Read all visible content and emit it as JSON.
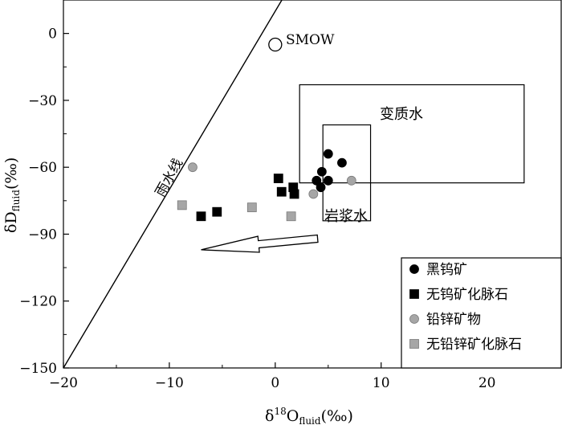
{
  "chart_data": {
    "type": "scatter",
    "xlabel": {
      "base": "δ",
      "sup": "18",
      "main": "O",
      "sub": "fluid",
      "unit": "(‰)"
    },
    "ylabel": {
      "main": "δD",
      "sub": "fluid",
      "unit": "(‰)"
    },
    "xlim": [
      -20,
      27
    ],
    "ylim": [
      -150,
      15
    ],
    "xticks": [
      -20,
      -10,
      0,
      10,
      20
    ],
    "yticks": [
      0,
      -30,
      -60,
      -90,
      -120,
      -150
    ],
    "xtick_labels": [
      "−20",
      "−10",
      "0",
      "10",
      "20"
    ],
    "ytick_labels": [
      "0",
      "−30",
      "−60",
      "−90",
      "−120",
      "−150"
    ],
    "meteoric_line": {
      "label": "雨水线",
      "slope": 8,
      "intercept": 10
    },
    "smow": {
      "label": "SMOW",
      "x": 0,
      "y": -5
    },
    "metamorphic_box": {
      "label": "变质水",
      "x": [
        2.3,
        23.5
      ],
      "y": [
        -23,
        -67
      ]
    },
    "magmatic_box": {
      "label": "岩浆水",
      "x": [
        4.5,
        9
      ],
      "y": [
        -41,
        -84
      ]
    },
    "arrow": {
      "from": [
        4,
        -92
      ],
      "to": [
        -7,
        -97
      ]
    },
    "series": [
      {
        "name": "黑钨矿",
        "marker": "circle",
        "color": "#000000",
        "x": [
          5,
          6.3,
          4.4,
          3.9,
          5,
          4.3
        ],
        "y": [
          -54,
          -58,
          -62,
          -66,
          -66,
          -69
        ]
      },
      {
        "name": "无钨矿化脉石",
        "marker": "square",
        "color": "#000000",
        "x": [
          0.3,
          0.6,
          1.7,
          1.8,
          -5.5,
          -7
        ],
        "y": [
          -65,
          -71,
          -69,
          -72,
          -80,
          -82
        ]
      },
      {
        "name": "铅锌矿物",
        "marker": "circle",
        "color": "#a6a6a6",
        "x": [
          -7.8,
          7.2,
          3.6
        ],
        "y": [
          -60,
          -66,
          -72
        ]
      },
      {
        "name": "无铅锌矿化脉石",
        "marker": "square",
        "color": "#a6a6a6",
        "x": [
          -8.8,
          -2.2,
          1.5
        ],
        "y": [
          -77,
          -78,
          -82
        ]
      }
    ]
  }
}
